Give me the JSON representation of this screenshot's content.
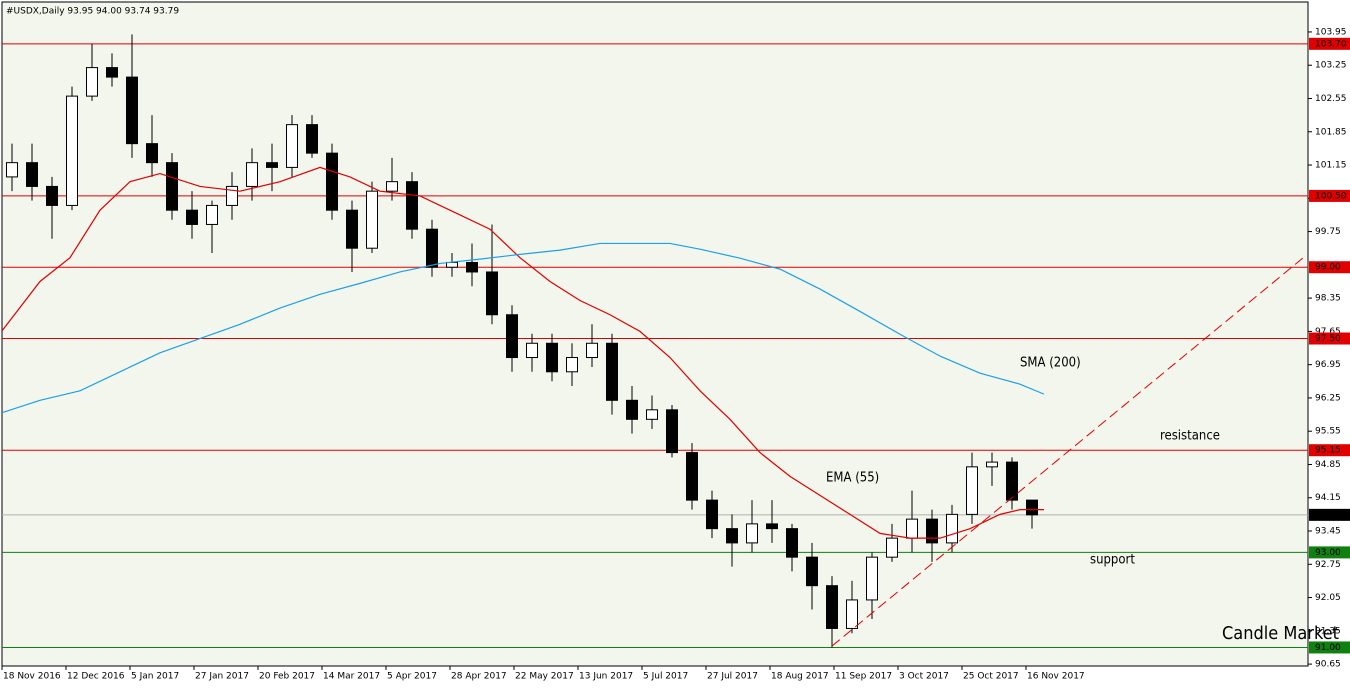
{
  "chart_data": {
    "type": "candlestick",
    "title": "#USDX,Daily  93.95 94.00 93.74 93.79",
    "x": [
      2.5,
      7.5,
      12.5,
      17.5,
      22.5,
      27.5,
      32.5,
      37.5,
      42.5,
      47.5,
      52.5,
      57.5,
      62.5,
      67.5,
      72.5,
      77.5,
      82.5,
      87.5,
      92.5,
      97.5,
      102.5,
      107.5,
      112.5,
      117.5,
      122.5,
      127.5,
      132.5,
      137.5,
      142.5,
      147.5,
      152.5,
      157.5,
      162.5,
      167.5,
      172.5,
      177.5,
      182.5,
      187.5,
      192.5,
      197.5,
      202.5,
      207.5,
      212.5,
      217.5,
      222.5,
      227.5,
      232.5,
      237.5,
      242.5,
      247.5,
      252.5,
      257.5
    ],
    "open": [
      100.9,
      101.2,
      100.7,
      100.3,
      102.6,
      103.2,
      103.0,
      101.6,
      101.2,
      100.2,
      99.9,
      100.3,
      100.7,
      101.2,
      101.1,
      102.0,
      101.4,
      100.2,
      99.4,
      100.6,
      100.8,
      99.8,
      99.0,
      99.1,
      98.9,
      98.0,
      97.1,
      97.4,
      96.8,
      97.1,
      97.4,
      96.2,
      95.8,
      96.0,
      95.1,
      94.1,
      93.5,
      93.2,
      93.6,
      93.5,
      92.9,
      92.3,
      91.4,
      92.0,
      92.9,
      93.3,
      93.7,
      93.2,
      93.8,
      94.8,
      94.9,
      94.1
    ],
    "high": [
      101.6,
      101.6,
      100.9,
      102.8,
      103.7,
      103.5,
      103.9,
      102.2,
      101.4,
      100.6,
      100.4,
      101.0,
      101.5,
      101.6,
      102.2,
      102.2,
      101.6,
      100.4,
      100.8,
      101.3,
      101.0,
      100.0,
      99.3,
      99.5,
      99.9,
      98.2,
      97.6,
      97.6,
      97.4,
      97.8,
      97.6,
      96.5,
      96.3,
      96.1,
      95.3,
      94.3,
      93.8,
      94.1,
      94.1,
      93.6,
      93.2,
      92.5,
      92.4,
      93.0,
      93.6,
      94.3,
      93.9,
      94.0,
      95.1,
      95.1,
      95.0,
      94.1
    ],
    "low": [
      100.6,
      100.4,
      99.6,
      100.2,
      102.5,
      102.8,
      101.3,
      100.9,
      100.0,
      99.6,
      99.3,
      100.0,
      100.4,
      100.6,
      100.9,
      101.3,
      100.0,
      98.9,
      99.3,
      100.4,
      99.6,
      98.8,
      98.8,
      98.6,
      97.8,
      96.8,
      96.8,
      96.6,
      96.5,
      96.9,
      95.9,
      95.5,
      95.6,
      95.0,
      93.9,
      93.3,
      92.7,
      93.0,
      93.2,
      92.6,
      91.8,
      91.0,
      91.3,
      91.6,
      92.8,
      93.0,
      92.8,
      93.0,
      93.6,
      94.4,
      93.9,
      93.5
    ],
    "close": [
      101.2,
      100.7,
      100.3,
      102.6,
      103.2,
      103.0,
      101.6,
      101.2,
      100.2,
      99.9,
      100.3,
      100.7,
      101.2,
      101.1,
      102.0,
      101.4,
      100.2,
      99.4,
      100.6,
      100.8,
      99.8,
      99.0,
      99.1,
      98.9,
      98.0,
      97.1,
      97.4,
      96.8,
      97.1,
      97.4,
      96.2,
      95.8,
      96.0,
      95.1,
      94.1,
      93.5,
      93.2,
      93.6,
      93.5,
      92.9,
      92.3,
      91.4,
      92.0,
      92.9,
      93.3,
      93.7,
      93.2,
      93.8,
      94.8,
      94.9,
      94.1,
      93.79
    ],
    "lines": [
      {
        "name": "EMA (55)",
        "color": "#e00000",
        "x": [
          0,
          9.5,
          17,
          24.5,
          32,
          39.5,
          49.5,
          59.5,
          69.5,
          79.5,
          87,
          94.5,
          104.5,
          114.5,
          122,
          129.5,
          137,
          144.5,
          152,
          159.5,
          167,
          174.5,
          182,
          189.5,
          197,
          204.5,
          212,
          219.5,
          227,
          234.5,
          242,
          249.5,
          254.5,
          260.5
        ],
        "values": [
          97.66,
          98.7,
          99.2,
          100.2,
          100.8,
          100.97,
          100.7,
          100.6,
          100.8,
          101.1,
          100.9,
          100.6,
          100.5,
          100.1,
          99.8,
          99.2,
          98.7,
          98.3,
          98.0,
          97.65,
          97.1,
          96.4,
          95.8,
          95.1,
          94.6,
          94.2,
          93.8,
          93.4,
          93.3,
          93.3,
          93.5,
          93.8,
          93.9,
          93.9
        ]
      },
      {
        "name": "SMA (200)",
        "color": "#1ea0e6",
        "x": [
          0,
          9.5,
          19.5,
          29.5,
          39.5,
          49.5,
          59.5,
          69.5,
          79.5,
          89.5,
          99.5,
          109.5,
          119.5,
          129.5,
          139.5,
          149.5,
          159.5,
          167,
          174.5,
          184.5,
          194.5,
          204.5,
          214.5,
          224.5,
          234.5,
          244.5,
          254.5,
          260.5
        ],
        "values": [
          95.94,
          96.2,
          96.4,
          96.8,
          97.2,
          97.5,
          97.8,
          98.14,
          98.43,
          98.66,
          98.9,
          99.08,
          99.17,
          99.27,
          99.36,
          99.5,
          99.5,
          99.5,
          99.38,
          99.19,
          98.96,
          98.54,
          98.07,
          97.59,
          97.13,
          96.77,
          96.54,
          96.33
        ]
      }
    ],
    "levels": [
      {
        "value": 103.7,
        "label": "103.70",
        "color": "#e00000"
      },
      {
        "value": 100.5,
        "label": "100.50",
        "color": "#e00000"
      },
      {
        "value": 99,
        "label": "99.00",
        "color": "#e00000"
      },
      {
        "value": 97.5,
        "label": "97.50",
        "color": "#e00000"
      },
      {
        "value": 95.15,
        "color": "#e00000"
      },
      {
        "value": 93.79,
        "color": "#000000"
      },
      {
        "value": 93,
        "label": "93.00",
        "color": "#108010"
      },
      {
        "value": 91,
        "label": "91.00",
        "color": "#108010"
      }
    ],
    "trendline": {
      "x": [
        207.5,
        325.75
      ],
      "values": [
        91.03,
        99.23
      ],
      "color": "#e00000"
    },
    "annotations": [
      {
        "text": "SMA (200)",
        "color": "#1ea0e6"
      },
      {
        "text": "EMA (55)",
        "color": "#e00000"
      },
      {
        "text": "resistance",
        "color": "#e00000"
      },
      {
        "text": "support",
        "color": "#108010"
      },
      {
        "text": "Candle Market",
        "color": "#000000"
      }
    ],
    "xlim": [
      0,
      326.5
    ],
    "ylim": [
      90.61,
      104.58
    ],
    "yticks": [
      103.95,
      103.25,
      102.55,
      101.85,
      101.15,
      100.45,
      99.75,
      98.35,
      97.65,
      96.95,
      96.25,
      95.55,
      94.85,
      94.15,
      93.45,
      92.75,
      92.05,
      91.35,
      90.65
    ],
    "xticks": [
      {
        "value": 0,
        "label": "18 Nov 2016"
      },
      {
        "value": 16,
        "label": "12 Dec 2016"
      },
      {
        "value": 32,
        "label": "5 Jan 2017"
      },
      {
        "value": 48,
        "label": "27 Jan 2017"
      },
      {
        "value": 64,
        "label": "20 Feb 2017"
      },
      {
        "value": 80,
        "label": "14 Mar 2017"
      },
      {
        "value": 96,
        "label": "5 Apr 2017"
      },
      {
        "value": 112,
        "label": "28 Apr 2017"
      },
      {
        "value": 128,
        "label": "22 May 2017"
      },
      {
        "value": 144,
        "label": "13 Jun 2017"
      },
      {
        "value": 160,
        "label": "5 Jul 2017"
      },
      {
        "value": 176,
        "label": "27 Jul 2017"
      },
      {
        "value": 192,
        "label": "18 Aug 2017"
      },
      {
        "value": 208,
        "label": "11 Sep 2017"
      },
      {
        "value": 224,
        "label": "3 Oct 2017"
      },
      {
        "value": 240,
        "label": "25 Oct 2017"
      },
      {
        "value": 256,
        "label": "16 Nov 2017"
      }
    ],
    "up_color": "#ffffff",
    "down_color": "#000000"
  }
}
